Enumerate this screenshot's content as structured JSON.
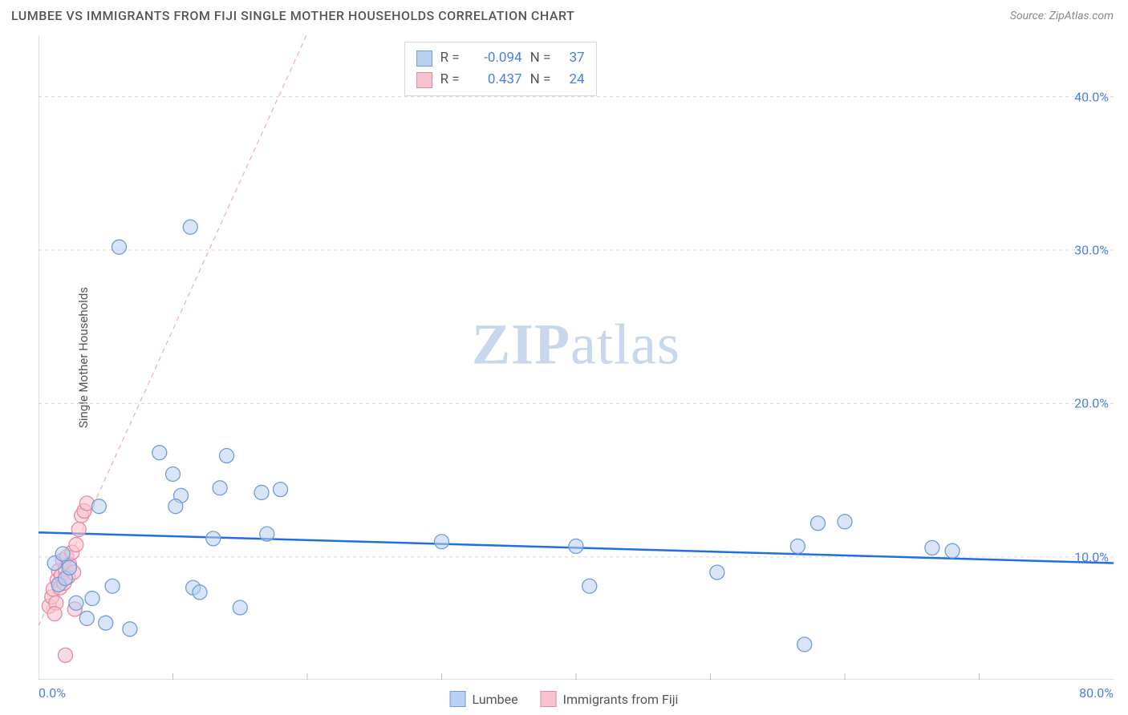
{
  "header": {
    "title": "LUMBEE VS IMMIGRANTS FROM FIJI SINGLE MOTHER HOUSEHOLDS CORRELATION CHART",
    "source": "Source: ZipAtlas.com"
  },
  "chart": {
    "type": "scatter",
    "ylabel": "Single Mother Households",
    "watermark_bold": "ZIP",
    "watermark_rest": "atlas",
    "background_color": "#ffffff",
    "grid_color": "#d7d7d7",
    "axis_color": "#bfbfbf",
    "label_color": "#4a7fe0",
    "text_color": "#555555",
    "xlim": [
      0,
      80
    ],
    "ylim": [
      2,
      44
    ],
    "x_ticks_minor": [
      10,
      20,
      30,
      40,
      50,
      60,
      70
    ],
    "x_ticks_labeled": [
      {
        "v": 0,
        "label": "0.0%",
        "align": "left"
      },
      {
        "v": 80,
        "label": "80.0%",
        "align": "right"
      }
    ],
    "y_grid": [
      10,
      20,
      30,
      40
    ],
    "y_ticks_labeled": [
      {
        "v": 10,
        "label": "10.0%"
      },
      {
        "v": 20,
        "label": "20.0%"
      },
      {
        "v": 30,
        "label": "30.0%"
      },
      {
        "v": 40,
        "label": "40.0%"
      }
    ],
    "marker_radius": 9,
    "marker_stroke_width": 1.3,
    "series": [
      {
        "name": "Lumbee",
        "fill": "#b9d0f0",
        "stroke": "#6f9ddc",
        "fill_opacity": 0.55,
        "points": [
          [
            1.2,
            9.6
          ],
          [
            1.5,
            8.2
          ],
          [
            1.8,
            10.2
          ],
          [
            2.0,
            8.6
          ],
          [
            2.3,
            9.3
          ],
          [
            2.8,
            7.0
          ],
          [
            3.6,
            6.0
          ],
          [
            4.0,
            7.3
          ],
          [
            4.5,
            13.3
          ],
          [
            5.0,
            5.7
          ],
          [
            5.5,
            8.1
          ],
          [
            6.8,
            5.3
          ],
          [
            6.0,
            30.2
          ],
          [
            9.0,
            16.8
          ],
          [
            10.0,
            15.4
          ],
          [
            10.6,
            14.0
          ],
          [
            11.3,
            31.5
          ],
          [
            11.5,
            8.0
          ],
          [
            12.0,
            7.7
          ],
          [
            13.5,
            14.5
          ],
          [
            14.0,
            16.6
          ],
          [
            15.0,
            6.7
          ],
          [
            16.6,
            14.2
          ],
          [
            17.0,
            11.5
          ],
          [
            18.0,
            14.4
          ],
          [
            30.0,
            11.0
          ],
          [
            40.0,
            10.7
          ],
          [
            41.0,
            8.1
          ],
          [
            50.5,
            9.0
          ],
          [
            56.5,
            10.7
          ],
          [
            58.0,
            12.2
          ],
          [
            60.0,
            12.3
          ],
          [
            66.5,
            10.6
          ],
          [
            68.0,
            10.4
          ],
          [
            57.0,
            4.3
          ],
          [
            10.2,
            13.3
          ],
          [
            13.0,
            11.2
          ]
        ],
        "trend": {
          "y_at_x0": 11.6,
          "y_at_x80": 9.6,
          "color": "#1f6fe0",
          "width": 2.5,
          "dash": null
        }
      },
      {
        "name": "Immigrants from Fiji",
        "fill": "#f6c3cf",
        "stroke": "#e98aa2",
        "fill_opacity": 0.6,
        "points": [
          [
            0.8,
            6.8
          ],
          [
            1.0,
            7.4
          ],
          [
            1.1,
            7.9
          ],
          [
            1.3,
            7.0
          ],
          [
            1.4,
            8.5
          ],
          [
            1.5,
            9.1
          ],
          [
            1.6,
            8.0
          ],
          [
            1.7,
            8.8
          ],
          [
            1.8,
            9.8
          ],
          [
            1.9,
            8.3
          ],
          [
            2.0,
            9.2
          ],
          [
            2.1,
            10.0
          ],
          [
            2.2,
            8.7
          ],
          [
            2.3,
            9.5
          ],
          [
            2.5,
            10.3
          ],
          [
            2.6,
            9.0
          ],
          [
            2.7,
            6.6
          ],
          [
            2.8,
            10.8
          ],
          [
            3.0,
            11.8
          ],
          [
            3.2,
            12.7
          ],
          [
            3.4,
            13.0
          ],
          [
            3.6,
            13.5
          ],
          [
            2.0,
            3.6
          ],
          [
            1.2,
            6.3
          ]
        ],
        "trend": {
          "y_at_x0": 5.5,
          "y_at_x80": 160,
          "color": "#f1a9bb",
          "width": 1.2,
          "dash": "6 5"
        }
      }
    ],
    "stats_box": {
      "rows": [
        {
          "swatch_fill": "#b9d0f0",
          "swatch_stroke": "#6f9ddc",
          "r": "-0.094",
          "n": "37"
        },
        {
          "swatch_fill": "#f6c3cf",
          "swatch_stroke": "#e98aa2",
          "r": "0.437",
          "n": "24"
        }
      ],
      "r_label": "R =",
      "n_label": "N ="
    },
    "legend": [
      {
        "label": "Lumbee",
        "fill": "#b9d0f0",
        "stroke": "#6f9ddc"
      },
      {
        "label": "Immigrants from Fiji",
        "fill": "#f6c3cf",
        "stroke": "#e98aa2"
      }
    ]
  }
}
